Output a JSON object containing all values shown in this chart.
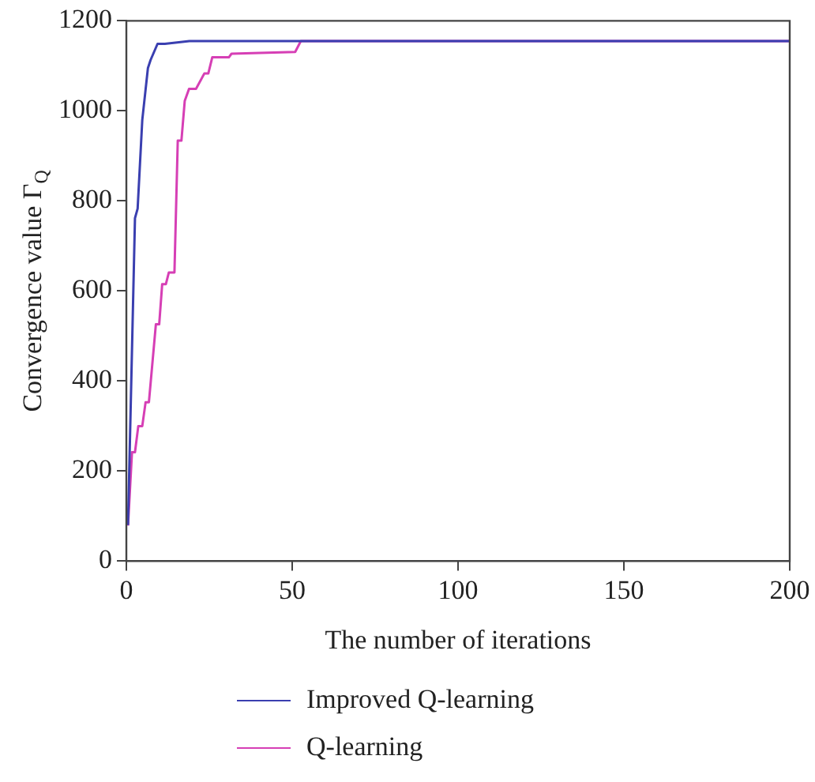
{
  "chart_data": {
    "type": "line",
    "xlabel": "The number of iterations",
    "ylabel": "Convergence value Γ$_{Q}$",
    "xlim": [
      0,
      200
    ],
    "xticks": [
      0,
      50,
      100,
      150,
      200
    ],
    "ylim": [
      0,
      1200
    ],
    "yticks": [
      0,
      200,
      400,
      600,
      800,
      1000,
      1200
    ],
    "grid": false,
    "legend": "bottom",
    "marker": "none",
    "line_style": "solid",
    "series": [
      {
        "name": "Improved Q-learning",
        "color": "#3a3fb0",
        "x": [
          0.5,
          2.6,
          3.4,
          4.8,
          6.5,
          7.3,
          9.4,
          11.6,
          19,
          200
        ],
        "values": [
          80,
          762,
          783,
          980,
          1095,
          1113,
          1149,
          1149,
          1155,
          1155
        ]
      },
      {
        "name": "Q-learning",
        "color": "#d63fb5",
        "x": [
          0.5,
          1.7,
          2.6,
          3.6,
          4.8,
          5.8,
          6.8,
          8.9,
          9.9,
          10.8,
          11.9,
          12.8,
          14.5,
          15.5,
          16.6,
          17.6,
          18.9,
          21,
          23.5,
          24.7,
          25.9,
          30.9,
          31.7,
          50.9,
          52.6,
          200
        ],
        "values": [
          79,
          242,
          242,
          300,
          300,
          353,
          353,
          526,
          526,
          615,
          615,
          641,
          641,
          934,
          934,
          1022,
          1049,
          1049,
          1083,
          1083,
          1119,
          1119,
          1127,
          1131,
          1155,
          1155
        ]
      }
    ]
  }
}
